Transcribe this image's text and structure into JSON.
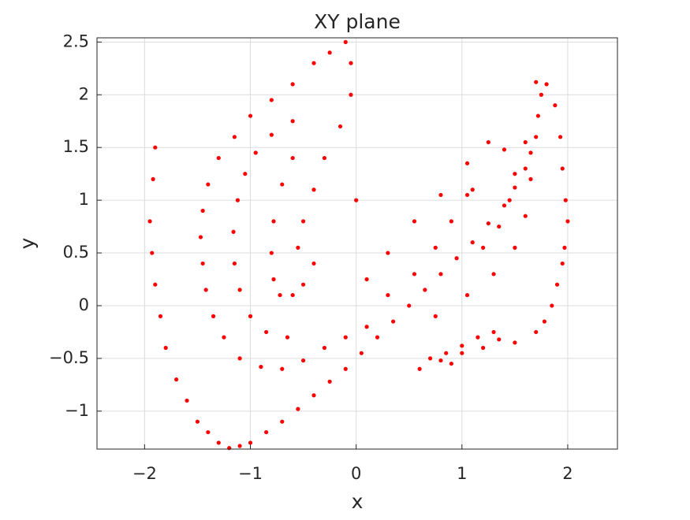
{
  "chart_data": {
    "type": "scatter",
    "title": "XY plane",
    "x_label": "x",
    "y_label": "y",
    "color": "#ff0000",
    "grid": true,
    "xlim": [
      -2.45,
      2.47
    ],
    "ylim": [
      -1.36,
      2.54
    ],
    "xticks": [
      {
        "value": -2,
        "label": "−2"
      },
      {
        "value": -1,
        "label": "−1"
      },
      0,
      1,
      2
    ],
    "yticks": [
      {
        "value": -1,
        "label": "−1"
      },
      {
        "value": -0.5,
        "label": "−0.5"
      },
      0,
      0.5,
      1,
      1.5,
      2,
      2.5
    ],
    "x": [
      -1.9,
      -1.92,
      -1.95,
      -1.93,
      -1.9,
      -1.85,
      -1.8,
      -1.7,
      -1.6,
      -1.5,
      -1.4,
      -1.3,
      -1.2,
      -1.1,
      -1.0,
      -0.85,
      -0.7,
      -0.55,
      -0.4,
      -0.25,
      -0.1,
      0.05,
      0.2,
      0.35,
      0.5,
      0.65,
      0.8,
      0.95,
      1.1,
      1.25,
      1.4,
      1.5,
      1.6,
      1.65,
      1.7,
      1.72,
      1.75,
      1.7,
      1.8,
      1.88,
      1.93,
      1.95,
      1.98,
      2.0,
      1.97,
      1.95,
      1.9,
      1.85,
      1.78,
      1.7,
      1.5,
      1.35,
      1.2,
      1.0,
      0.8,
      0.6,
      0.7,
      0.85,
      1.0,
      1.15,
      1.3,
      0.9,
      -0.1,
      -0.25,
      -0.4,
      -0.6,
      -0.8,
      -1.0,
      -1.15,
      -1.3,
      -1.4,
      -1.45,
      -1.47,
      -1.45,
      -1.42,
      -1.35,
      -1.25,
      -1.1,
      -0.9,
      -0.7,
      -0.5,
      -0.3,
      -0.1,
      0.1,
      -0.6,
      -0.8,
      -0.95,
      -1.05,
      -1.12,
      -1.16,
      -1.15,
      -1.1,
      -1.0,
      -0.85,
      -0.65,
      -0.6,
      -0.7,
      -0.78,
      -0.8,
      -0.78,
      -0.72,
      -0.6,
      -0.5,
      -0.4,
      -0.05,
      -0.05,
      -0.15,
      -0.3,
      -0.4,
      -0.5,
      -0.55,
      0.3,
      0.55,
      0.75,
      0.9,
      1.05,
      1.1,
      1.2,
      1.35,
      1.45,
      1.5,
      1.4,
      1.25,
      1.05,
      0.8,
      0.55,
      0.3,
      0.1,
      1.6,
      1.65,
      1.6,
      1.5,
      1.3,
      1.05,
      0.75,
      0
    ],
    "values": [
      1.5,
      1.2,
      0.8,
      0.5,
      0.2,
      -0.1,
      -0.4,
      -0.7,
      -0.9,
      -1.1,
      -1.2,
      -1.3,
      -1.35,
      -1.33,
      -1.3,
      -1.2,
      -1.1,
      -0.98,
      -0.85,
      -0.72,
      -0.6,
      -0.45,
      -0.3,
      -0.15,
      0,
      0.15,
      0.3,
      0.45,
      0.6,
      0.78,
      0.95,
      1.12,
      1.3,
      1.45,
      1.6,
      1.8,
      2.0,
      2.12,
      2.1,
      1.9,
      1.6,
      1.3,
      1.0,
      0.8,
      0.55,
      0.4,
      0.2,
      0,
      -0.15,
      -0.25,
      -0.35,
      -0.32,
      -0.4,
      -0.45,
      -0.52,
      -0.6,
      -0.5,
      -0.45,
      -0.38,
      -0.3,
      -0.25,
      -0.55,
      2.5,
      2.4,
      2.3,
      2.1,
      1.95,
      1.8,
      1.6,
      1.4,
      1.15,
      0.9,
      0.65,
      0.4,
      0.15,
      -0.1,
      -0.3,
      -0.5,
      -0.58,
      -0.6,
      -0.52,
      -0.4,
      -0.3,
      -0.2,
      1.75,
      1.62,
      1.45,
      1.25,
      1.0,
      0.7,
      0.4,
      0.15,
      -0.1,
      -0.25,
      -0.3,
      1.4,
      1.15,
      0.8,
      0.5,
      0.25,
      0.1,
      0.1,
      0.2,
      0.4,
      2.3,
      2.0,
      1.7,
      1.4,
      1.1,
      0.8,
      0.55,
      0.1,
      0.3,
      0.55,
      0.8,
      1.05,
      1.1,
      0.55,
      0.75,
      1.0,
      1.25,
      1.48,
      1.55,
      1.35,
      1.05,
      0.8,
      0.5,
      0.25,
      1.55,
      1.2,
      0.85,
      0.55,
      0.3,
      0.1,
      -0.1,
      1
    ]
  }
}
